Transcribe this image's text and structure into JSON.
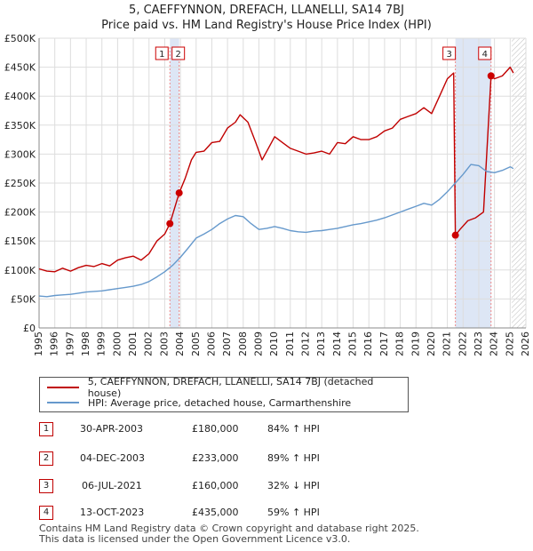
{
  "title_line1": "5, CAEFFYNNON, DREFACH, LLANELLI, SA14 7BJ",
  "title_line2": "Price paid vs. HM Land Registry's House Price Index (HPI)",
  "colors": {
    "property": "#c00000",
    "hpi": "#6699cc",
    "marker": "#cc0000",
    "shade": "#dde6f5",
    "grid": "#dddddd",
    "vline": "#e88"
  },
  "legend": {
    "property_label": "5, CAEFFYNNON, DREFACH, LLANELLI, SA14 7BJ (detached house)",
    "hpi_label": "HPI: Average price, detached house, Carmarthenshire"
  },
  "transactions": [
    {
      "num": "1",
      "date": "30-APR-2003",
      "price": "£180,000",
      "hpi": "84% ↑ HPI"
    },
    {
      "num": "2",
      "date": "04-DEC-2003",
      "price": "£233,000",
      "hpi": "89% ↑ HPI"
    },
    {
      "num": "3",
      "date": "06-JUL-2021",
      "price": "£160,000",
      "hpi": "32% ↓ HPI"
    },
    {
      "num": "4",
      "date": "13-OCT-2023",
      "price": "£435,000",
      "hpi": "59% ↑ HPI"
    }
  ],
  "footer_line1": "Contains HM Land Registry data © Crown copyright and database right 2025.",
  "footer_line2": "This data is licensed under the Open Government Licence v3.0.",
  "chart_data": {
    "type": "line",
    "title": "5, CAEFFYNNON, DREFACH, LLANELLI, SA14 7BJ — Price paid vs. HM Land Registry's House Price Index (HPI)",
    "xlabel": "",
    "ylabel": "",
    "xlim": [
      1995,
      2026
    ],
    "ylim": [
      0,
      500000
    ],
    "y_ticks": [
      0,
      50000,
      100000,
      150000,
      200000,
      250000,
      300000,
      350000,
      400000,
      450000,
      500000
    ],
    "y_tick_labels": [
      "£0",
      "£50K",
      "£100K",
      "£150K",
      "£200K",
      "£250K",
      "£300K",
      "£350K",
      "£400K",
      "£450K",
      "£500K"
    ],
    "x_ticks": [
      1995,
      1996,
      1997,
      1998,
      1999,
      2000,
      2001,
      2002,
      2003,
      2004,
      2005,
      2006,
      2007,
      2008,
      2009,
      2010,
      2011,
      2012,
      2013,
      2014,
      2015,
      2016,
      2017,
      2018,
      2019,
      2020,
      2021,
      2022,
      2023,
      2024,
      2025,
      2026
    ],
    "grid": true,
    "legend_position": "below",
    "shaded_ranges": [
      [
        2003.33,
        2003.92
      ],
      [
        2021.51,
        2023.78
      ]
    ],
    "hatched_from": 2025.1,
    "series": [
      {
        "name": "5, CAEFFYNNON, DREFACH, LLANELLI, SA14 7BJ (detached house)",
        "x": [
          1995,
          1995.5,
          1996,
          1996.5,
          1997,
          1997.5,
          1998,
          1998.5,
          1999,
          1999.5,
          2000,
          2000.5,
          2001,
          2001.5,
          2002,
          2002.5,
          2003.0,
          2003.33,
          2003.92,
          2004.3,
          2004.7,
          2005,
          2005.5,
          2006,
          2006.5,
          2007,
          2007.5,
          2007.8,
          2008.3,
          2008.8,
          2009.2,
          2009.6,
          2010,
          2010.5,
          2011,
          2011.5,
          2012,
          2012.5,
          2013,
          2013.5,
          2014,
          2014.5,
          2015,
          2015.5,
          2016,
          2016.5,
          2017,
          2017.5,
          2018,
          2018.5,
          2019,
          2019.5,
          2020,
          2020.5,
          2021.0,
          2021.4,
          2021.51,
          2021.8,
          2022.3,
          2022.8,
          2023.3,
          2023.78,
          2024.0,
          2024.5,
          2025.0,
          2025.2
        ],
        "values": [
          102000,
          98000,
          97000,
          103000,
          98000,
          104000,
          108000,
          106000,
          111000,
          107000,
          117000,
          121000,
          124000,
          117000,
          128000,
          150000,
          162000,
          180000,
          233000,
          258000,
          290000,
          303000,
          305000,
          320000,
          322000,
          345000,
          355000,
          368000,
          355000,
          320000,
          290000,
          310000,
          330000,
          320000,
          310000,
          305000,
          300000,
          302000,
          305000,
          300000,
          320000,
          318000,
          330000,
          325000,
          325000,
          330000,
          340000,
          345000,
          360000,
          365000,
          370000,
          380000,
          370000,
          400000,
          430000,
          440000,
          160000,
          170000,
          185000,
          190000,
          200000,
          435000,
          430000,
          435000,
          450000,
          440000
        ]
      },
      {
        "name": "HPI: Average price, detached house, Carmarthenshire",
        "x": [
          1995,
          1995.5,
          1996,
          1996.5,
          1997,
          1997.5,
          1998,
          1998.5,
          1999,
          1999.5,
          2000,
          2000.5,
          2001,
          2001.5,
          2002,
          2002.5,
          2003.0,
          2003.5,
          2004.0,
          2004.5,
          2005,
          2005.5,
          2006,
          2006.5,
          2007,
          2007.5,
          2008,
          2008.5,
          2009,
          2009.5,
          2010,
          2010.5,
          2011,
          2011.5,
          2012,
          2012.5,
          2013,
          2013.5,
          2014,
          2014.5,
          2015,
          2015.5,
          2016,
          2016.5,
          2017,
          2017.5,
          2018,
          2018.5,
          2019,
          2019.5,
          2020,
          2020.5,
          2021,
          2021.5,
          2022,
          2022.5,
          2023,
          2023.5,
          2024,
          2024.5,
          2025,
          2025.2
        ],
        "values": [
          55000,
          54000,
          56000,
          57000,
          58000,
          60000,
          62000,
          63000,
          64000,
          66000,
          68000,
          70000,
          72000,
          75000,
          80000,
          88000,
          97000,
          108000,
          122000,
          138000,
          155000,
          162000,
          170000,
          180000,
          188000,
          194000,
          192000,
          180000,
          170000,
          172000,
          175000,
          172000,
          168000,
          166000,
          165000,
          167000,
          168000,
          170000,
          172000,
          175000,
          178000,
          180000,
          183000,
          186000,
          190000,
          195000,
          200000,
          205000,
          210000,
          215000,
          212000,
          222000,
          235000,
          250000,
          265000,
          282000,
          280000,
          270000,
          268000,
          272000,
          278000,
          275000
        ]
      }
    ],
    "markers": [
      {
        "label": "1",
        "x": 2003.33,
        "y": 180000
      },
      {
        "label": "2",
        "x": 2003.92,
        "y": 233000
      },
      {
        "label": "3",
        "x": 2021.51,
        "y": 160000
      },
      {
        "label": "4",
        "x": 2023.78,
        "y": 435000
      }
    ]
  }
}
